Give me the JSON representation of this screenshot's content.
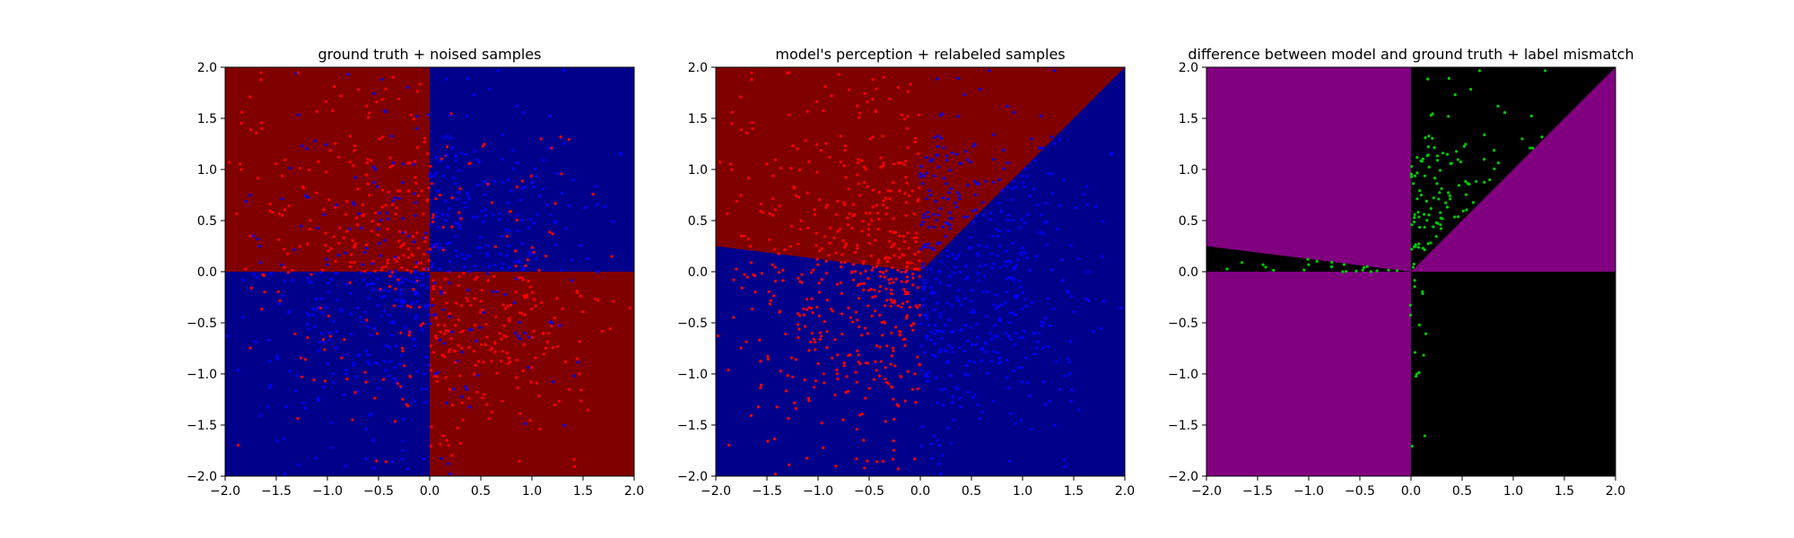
{
  "chart_data": [
    {
      "type": "heatmap",
      "title": "ground truth + noised samples",
      "xlim": [
        -2.0,
        2.0
      ],
      "ylim": [
        -2.0,
        2.0
      ],
      "xticks": [
        "-2.0",
        "-1.5",
        "-1.0",
        "-0.5",
        "0.0",
        "0.5",
        "1.0",
        "1.5",
        "2.0"
      ],
      "yticks": [
        "-2.0",
        "-1.5",
        "-1.0",
        "-0.5",
        "0.0",
        "0.5",
        "1.0",
        "1.5",
        "2.0"
      ],
      "grid": false,
      "background": {
        "description": "quadrant classification",
        "regions": [
          {
            "quadrant": "x<0, y>0",
            "color": "#800000"
          },
          {
            "quadrant": "x>0, y>0",
            "color": "#00008b"
          },
          {
            "quadrant": "x<0, y<0",
            "color": "#00008b"
          },
          {
            "quadrant": "x>0, y<0",
            "color": "#800000"
          }
        ]
      },
      "points": {
        "description": "noised samples; color = noisy label, roughly 25% per quadrant flipped",
        "count": 1000,
        "colors": [
          "#ff0000",
          "#0000ff"
        ]
      }
    },
    {
      "type": "heatmap",
      "title": "model's perception + relabeled samples",
      "xlim": [
        -2.0,
        2.0
      ],
      "ylim": [
        -2.0,
        2.0
      ],
      "xticks": [
        "-2.0",
        "-1.5",
        "-1.0",
        "-0.5",
        "0.0",
        "0.5",
        "1.0",
        "1.5",
        "2.0"
      ],
      "yticks": [
        "-2.0",
        "-1.5",
        "-1.0",
        "-0.5",
        "0.0",
        "0.5",
        "1.0",
        "1.5",
        "2.0"
      ],
      "grid": false,
      "background": {
        "description": "model decision boundary: kink at (0,0); left arm to (-2,0.25), right arm to (2,2); red above, blue below",
        "boundary": [
          [
            -2.0,
            0.25
          ],
          [
            0.0,
            0.0
          ],
          [
            2.0,
            2.0
          ]
        ],
        "above_color": "#800000",
        "below_color": "#00008b"
      },
      "points": {
        "description": "samples relabeled by model; red = x<0, blue = x>0",
        "count": 1000,
        "colors": [
          "#ff0000",
          "#0000ff"
        ]
      }
    },
    {
      "type": "heatmap",
      "title": "difference between model and ground truth + label mismatch",
      "xlim": [
        -2.0,
        2.0
      ],
      "ylim": [
        -2.0,
        2.0
      ],
      "xticks": [
        "-2.0",
        "-1.5",
        "-1.0",
        "-0.5",
        "0.0",
        "0.5",
        "1.0",
        "1.5",
        "2.0"
      ],
      "yticks": [
        "-2.0",
        "-1.5",
        "-1.0",
        "-0.5",
        "0.0",
        "0.5",
        "1.0",
        "1.5",
        "2.0"
      ],
      "grid": false,
      "background": {
        "description": "purple where model differs from ground truth, black where it agrees",
        "diff_color": "#800080",
        "agree_color": "#000000"
      },
      "points": {
        "description": "mismatched labels",
        "count": 330,
        "colors": [
          "#00cc00"
        ]
      }
    }
  ]
}
